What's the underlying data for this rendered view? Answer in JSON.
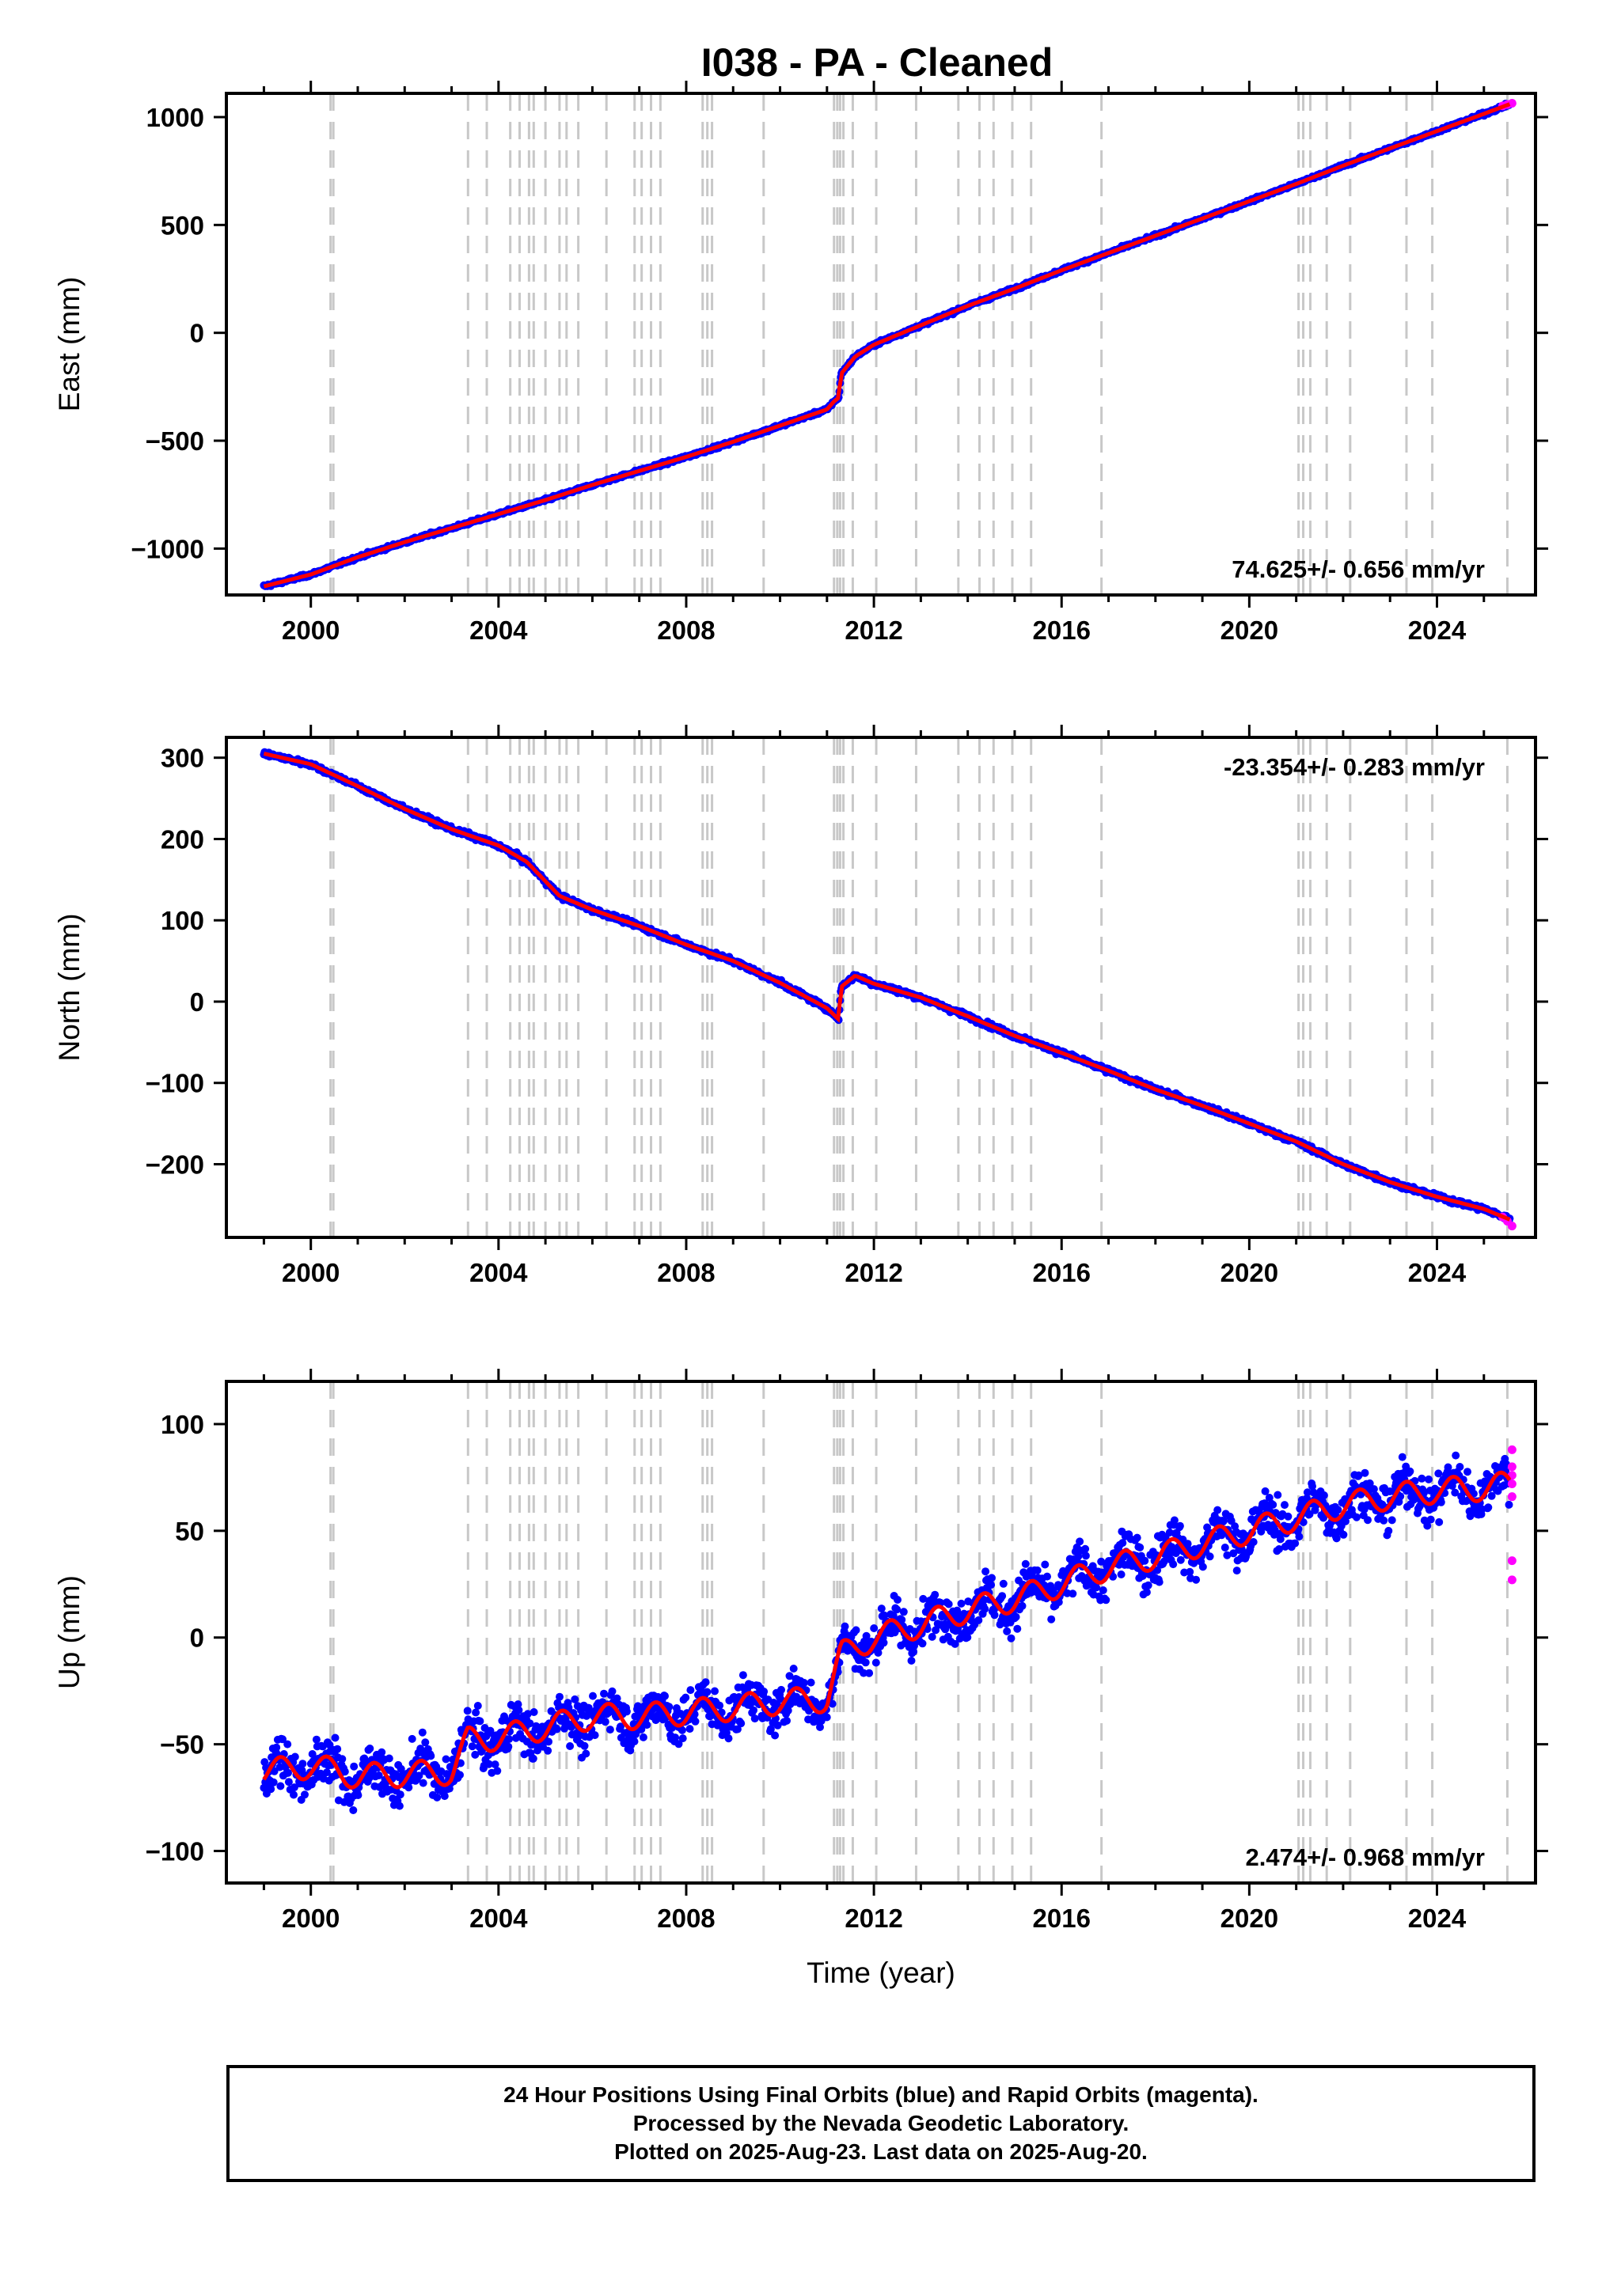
{
  "title": "I038  - PA - Cleaned",
  "colors": {
    "final": "#0000ff",
    "rapid": "#ff00ff",
    "model": "#ff0000",
    "steps": "#c8c8c8"
  },
  "caption": {
    "line1": "24 Hour Positions Using Final Orbits (blue) and Rapid Orbits (magenta).",
    "line2": "Processed by the Nevada Geodetic Laboratory.",
    "line3": "Plotted on 2025-Aug-23. Last data on 2025-Aug-20."
  },
  "chart_data": [
    {
      "type": "scatter",
      "panel": "east",
      "title": "I038  - PA - Cleaned",
      "ylabel": "East (mm)",
      "xlabel": "",
      "xlim": [
        1998.2,
        2026.1
      ],
      "ylim": [
        -1215,
        1110
      ],
      "xticks": [
        2000,
        2004,
        2008,
        2012,
        2016,
        2020,
        2024
      ],
      "yticks": [
        -1000,
        -500,
        0,
        500,
        1000
      ],
      "rate_label": "74.625+/- 0.656 mm/yr",
      "rate_position": "bottom-right",
      "series": [
        {
          "name": "Final Orbits (blue)",
          "x": [
            1999.0,
            2000.0,
            2001.0,
            2002.0,
            2003.0,
            2004.0,
            2005.0,
            2006.0,
            2007.0,
            2008.0,
            2009.0,
            2010.0,
            2011.0,
            2011.15,
            2011.25,
            2011.3,
            2011.6,
            2012.0,
            2013.0,
            2014.0,
            2015.0,
            2016.0,
            2017.0,
            2018.0,
            2019.0,
            2020.0,
            2021.0,
            2022.0,
            2023.0,
            2024.0,
            2025.0,
            2025.55
          ],
          "y": [
            -1175,
            -1120,
            -1040,
            -970,
            -905,
            -840,
            -775,
            -705,
            -640,
            -575,
            -505,
            -430,
            -355,
            -318,
            -300,
            -190,
            -110,
            -55,
            35,
            125,
            205,
            290,
            370,
            450,
            530,
            610,
            690,
            775,
            855,
            935,
            1015,
            1060
          ]
        },
        {
          "name": "Rapid Orbits (magenta)",
          "x": [
            2025.4,
            2025.5,
            2025.6
          ],
          "y": [
            1052,
            1058,
            1064
          ]
        }
      ]
    },
    {
      "type": "scatter",
      "panel": "north",
      "ylabel": "North (mm)",
      "xlabel": "",
      "xlim": [
        1998.2,
        2026.1
      ],
      "ylim": [
        -290,
        325
      ],
      "xticks": [
        2000,
        2004,
        2008,
        2012,
        2016,
        2020,
        2024
      ],
      "yticks": [
        -200,
        -100,
        0,
        100,
        200,
        300
      ],
      "rate_label": "-23.354+/- 0.283 mm/yr",
      "rate_position": "top-right",
      "series": [
        {
          "name": "Final Orbits (blue)",
          "x": [
            1999.0,
            2000.0,
            2001.0,
            2002.0,
            2003.0,
            2004.0,
            2004.6,
            2005.3,
            2006.0,
            2007.0,
            2008.0,
            2009.0,
            2010.0,
            2011.0,
            2011.25,
            2011.3,
            2011.6,
            2012.0,
            2013.0,
            2014.0,
            2015.0,
            2016.0,
            2017.0,
            2018.0,
            2019.0,
            2020.0,
            2021.0,
            2022.0,
            2023.0,
            2024.0,
            2025.0,
            2025.55
          ],
          "y": [
            305,
            292,
            265,
            237,
            212,
            192,
            172,
            130,
            113,
            93,
            70,
            50,
            23,
            -8,
            -22,
            18,
            32,
            22,
            5,
            -18,
            -42,
            -63,
            -85,
            -108,
            -128,
            -150,
            -172,
            -200,
            -222,
            -240,
            -255,
            -268
          ]
        },
        {
          "name": "Rapid Orbits (magenta)",
          "x": [
            2025.4,
            2025.5,
            2025.6
          ],
          "y": [
            -265,
            -270,
            -276
          ]
        }
      ]
    },
    {
      "type": "scatter",
      "panel": "up",
      "ylabel": "Up (mm)",
      "xlabel": "Time (year)",
      "xlim": [
        1998.2,
        2026.1
      ],
      "ylim": [
        -115,
        120
      ],
      "xticks": [
        2000,
        2004,
        2008,
        2012,
        2016,
        2020,
        2024
      ],
      "yticks": [
        -100,
        -50,
        0,
        50,
        100
      ],
      "rate_label": "2.474+/- 0.968 mm/yr",
      "rate_position": "bottom-right",
      "series": [
        {
          "name": "Final Orbits (blue)",
          "x": [
            1999.0,
            2000.0,
            2001.0,
            2002.0,
            2003.0,
            2003.35,
            2004.0,
            2005.0,
            2006.0,
            2007.0,
            2008.0,
            2009.0,
            2010.0,
            2011.0,
            2011.3,
            2012.0,
            2013.0,
            2014.0,
            2015.0,
            2016.0,
            2017.0,
            2018.0,
            2019.0,
            2020.0,
            2021.0,
            2022.0,
            2023.0,
            2024.0,
            2025.0,
            2025.55
          ],
          "y": [
            -63,
            -60,
            -65,
            -64,
            -63,
            -48,
            -47,
            -42,
            -37,
            -37,
            -35,
            -33,
            -30,
            -29,
            -8,
            0,
            6,
            13,
            18,
            25,
            33,
            38,
            44,
            50,
            56,
            62,
            66,
            69,
            70,
            72
          ]
        },
        {
          "name": "Rapid Orbits (magenta)",
          "x": [
            2025.6,
            2025.6,
            2025.6,
            2025.6,
            2025.6,
            2025.6,
            2025.6
          ],
          "y": [
            88,
            80,
            76,
            72,
            66,
            36,
            27
          ]
        }
      ]
    }
  ],
  "step_dates": [
    2000.42,
    2000.48,
    2003.35,
    2003.75,
    2004.25,
    2004.45,
    2004.65,
    2004.75,
    2005.0,
    2005.3,
    2005.45,
    2005.7,
    2006.3,
    2006.9,
    2007.05,
    2007.25,
    2007.45,
    2008.35,
    2008.45,
    2008.55,
    2009.65,
    2011.15,
    2011.22,
    2011.28,
    2011.35,
    2011.55,
    2012.05,
    2012.9,
    2013.8,
    2014.25,
    2014.55,
    2014.95,
    2015.35,
    2016.85,
    2021.05,
    2021.15,
    2021.3,
    2021.65,
    2022.15,
    2023.35,
    2023.9,
    2025.5
  ]
}
